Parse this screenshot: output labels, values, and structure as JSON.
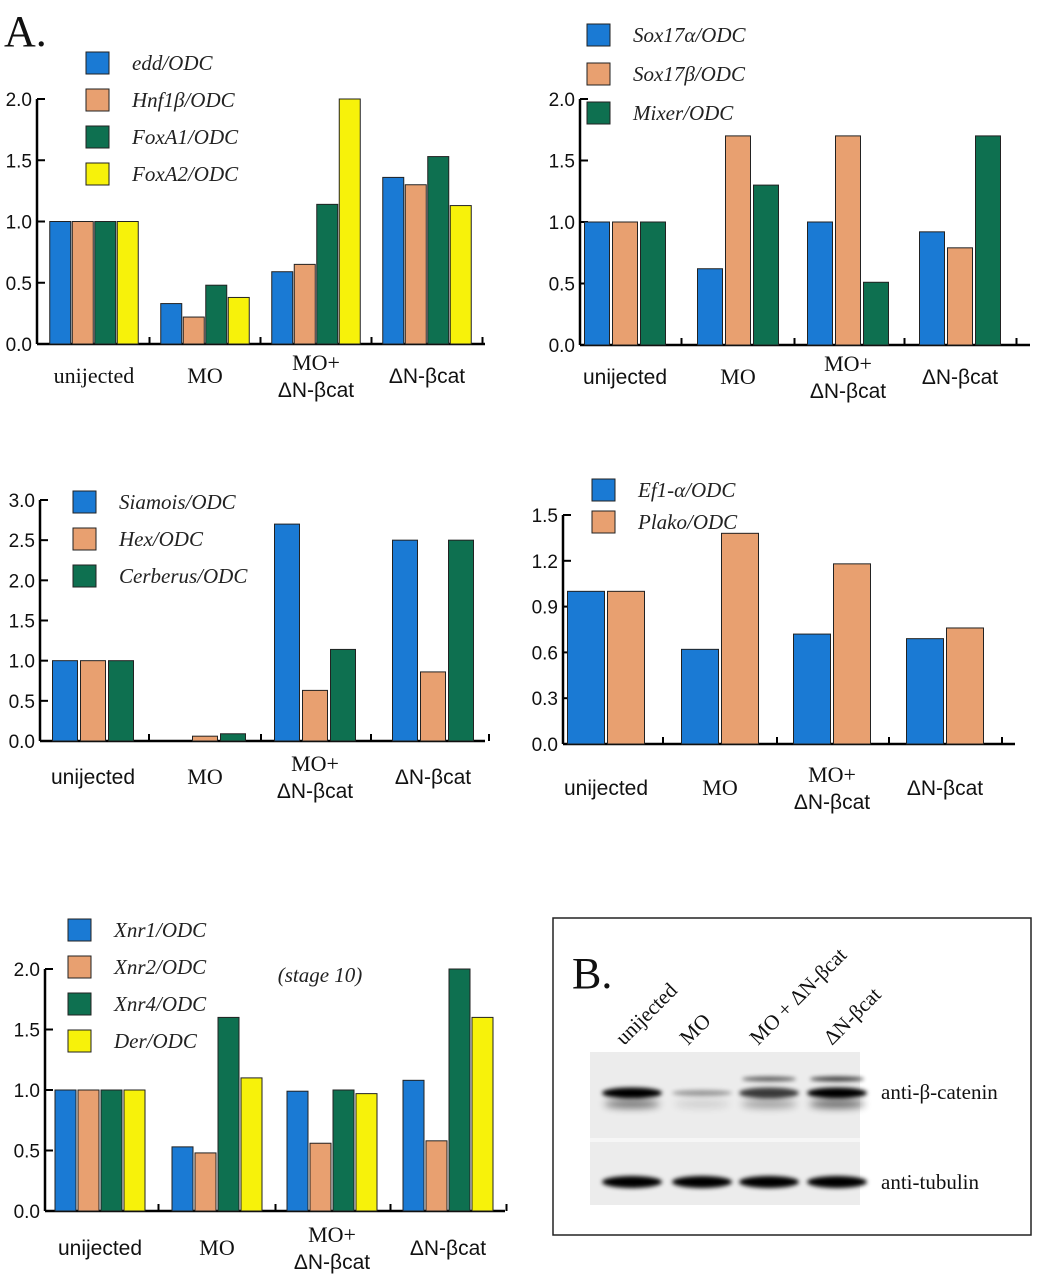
{
  "panel_labels": {
    "a": "A.",
    "b": "B."
  },
  "colors": {
    "blue": "#1a7ad4",
    "orange": "#e8a070",
    "green": "#0e7050",
    "yellow": "#f7f20a"
  },
  "chart_data": [
    {
      "type": "bar",
      "categories": [
        "unijected",
        "MO",
        "MO+\nΔN-βcat",
        "ΔN-βcat"
      ],
      "ylim": [
        0,
        2.0
      ],
      "yticks": [
        "0.0",
        "0.5",
        "1.0",
        "1.5",
        "2.0"
      ],
      "legend_placement": "top-left",
      "series": [
        {
          "name": "edd/ODC",
          "color": "#1a7ad4",
          "values": [
            1.0,
            0.33,
            0.59,
            1.36
          ]
        },
        {
          "name": "Hnf1β/ODC",
          "color": "#e8a070",
          "values": [
            1.0,
            0.22,
            0.65,
            1.3
          ]
        },
        {
          "name": "FoxA1/ODC",
          "color": "#0e7050",
          "values": [
            1.0,
            0.48,
            1.14,
            1.53
          ]
        },
        {
          "name": "FoxA2/ODC",
          "color": "#f7f20a",
          "values": [
            1.0,
            0.38,
            2.0,
            1.13
          ]
        }
      ]
    },
    {
      "type": "bar",
      "categories": [
        "unijected",
        "MO",
        "MO+\nΔN-βcat",
        "ΔN-βcat"
      ],
      "ylim": [
        0,
        2.0
      ],
      "yticks": [
        "0.0",
        "0.5",
        "1.0",
        "1.5",
        "2.0"
      ],
      "legend_placement": "top-left",
      "series": [
        {
          "name": "Sox17α/ODC",
          "color": "#1a7ad4",
          "values": [
            1.0,
            0.62,
            1.0,
            0.92
          ]
        },
        {
          "name": "Sox17β/ODC",
          "color": "#e8a070",
          "values": [
            1.0,
            1.7,
            1.7,
            0.79
          ]
        },
        {
          "name": "Mixer/ODC",
          "color": "#0e7050",
          "values": [
            1.0,
            1.3,
            0.51,
            1.7
          ]
        }
      ]
    },
    {
      "type": "bar",
      "categories": [
        "unijected",
        "MO",
        "MO+\nΔN-βcat",
        "ΔN-βcat"
      ],
      "ylim": [
        0,
        3.0
      ],
      "yticks": [
        "0.0",
        "0.5",
        "1.0",
        "1.5",
        "2.0",
        "2.5",
        "3.0"
      ],
      "legend_placement": "top-left",
      "series": [
        {
          "name": "Siamois/ODC",
          "color": "#1a7ad4",
          "values": [
            1.0,
            0.0,
            2.7,
            2.5
          ]
        },
        {
          "name": "Hex/ODC",
          "color": "#e8a070",
          "values": [
            1.0,
            0.06,
            0.63,
            0.86
          ]
        },
        {
          "name": "Cerberus/ODC",
          "color": "#0e7050",
          "values": [
            1.0,
            0.09,
            1.14,
            2.5
          ]
        }
      ]
    },
    {
      "type": "bar",
      "categories": [
        "unijected",
        "MO",
        "MO+\nΔN-βcat",
        "ΔN-βcat"
      ],
      "ylim": [
        0,
        1.5
      ],
      "yticks": [
        "0.0",
        "0.3",
        "0.6",
        "0.9",
        "1.2",
        "1.5"
      ],
      "legend_placement": "top-left",
      "series": [
        {
          "name": "Ef1-α/ODC",
          "color": "#1a7ad4",
          "values": [
            1.0,
            0.62,
            0.72,
            0.69
          ]
        },
        {
          "name": "Plako/ODC",
          "color": "#e8a070",
          "values": [
            1.0,
            1.38,
            1.18,
            0.76
          ]
        }
      ]
    },
    {
      "type": "bar",
      "categories": [
        "unijected",
        "MO",
        "MO+\nΔN-βcat",
        "ΔN-βcat"
      ],
      "ylim": [
        0,
        2.0
      ],
      "yticks": [
        "0.0",
        "0.5",
        "1.0",
        "1.5",
        "2.0"
      ],
      "legend_placement": "top-left",
      "annotation": "(stage 10)",
      "series": [
        {
          "name": "Xnr1/ODC",
          "color": "#1a7ad4",
          "values": [
            1.0,
            0.53,
            0.99,
            1.08
          ]
        },
        {
          "name": "Xnr2/ODC",
          "color": "#e8a070",
          "values": [
            1.0,
            0.48,
            0.56,
            0.58
          ]
        },
        {
          "name": "Xnr4/ODC",
          "color": "#0e7050",
          "values": [
            1.0,
            1.6,
            1.0,
            2.0
          ]
        },
        {
          "name": "Der/ODC",
          "color": "#f7f20a",
          "values": [
            1.0,
            1.1,
            0.97,
            1.6
          ]
        }
      ]
    }
  ],
  "blot": {
    "lanes": [
      "unijected",
      "MO",
      "MO + ΔN-βcat",
      "ΔN-βcat"
    ],
    "rows": [
      "anti-β-catenin",
      "anti-tubulin"
    ]
  }
}
